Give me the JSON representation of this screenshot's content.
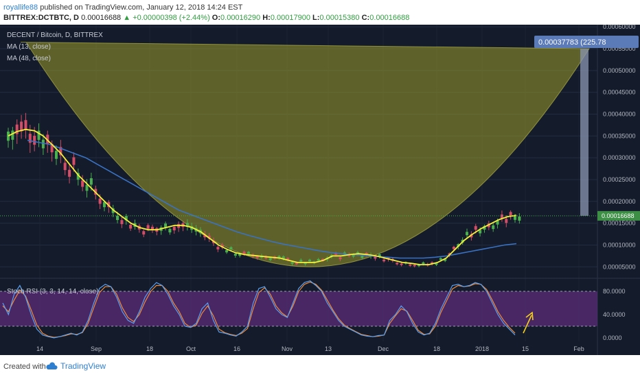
{
  "header": {
    "user": "royallife88",
    "published": " published on TradingView.com, January 12, 2018 14:24 EST",
    "symbol": "BITTREX:DCTBTC, D",
    "last": "0.00016688",
    "change": "▲ +0.00000398 (+2.44%)",
    "o_label": "O:",
    "o": "0.00016290",
    "h_label": "H:",
    "h": "0.00017900",
    "l_label": "L:",
    "l": "0.00015380",
    "c_label": "C:",
    "c": "0.00016688"
  },
  "legend": {
    "pair": "DECENT / Bitcoin, D, BITTREX",
    "ma13": "MA (13, close)",
    "ma48": "MA (48, close)",
    "stoch": "Stoch RSI (3, 3, 14, 14, close)"
  },
  "labels": {
    "price_tag": "0.00016688",
    "measure": "0.00037783 (225.78"
  },
  "colors": {
    "background": "#141b2b",
    "up": "#4caf50",
    "down": "#d24d65",
    "ma13": "#f5f039",
    "ma48": "#3a72c4",
    "cup": "#9a9a2a",
    "stoch_band": "#5a2c78",
    "k_line": "#5aa0f0",
    "d_line": "#f08a3c",
    "arrow": "#f5d020"
  },
  "footer": {
    "created": "Created with",
    "brand": "TradingView"
  },
  "chart_data": [
    {
      "type": "candlestick",
      "title": "DECENT / Bitcoin, D, BITTREX",
      "x_ticks": [
        "14",
        "Sep",
        "18",
        "Oct",
        "16",
        "Nov",
        "13",
        "Dec",
        "18",
        "2018",
        "15",
        "Feb"
      ],
      "y_ticks": [
        "0.00060000",
        "0.00055000",
        "0.00050000",
        "0.00045000",
        "0.00040000",
        "0.00035000",
        "0.00030000",
        "0.00025000",
        "0.00020000",
        "0.00015000",
        "0.00010000",
        "0.00005000"
      ],
      "ylim": [
        3e-05,
        0.000605
      ],
      "last_close": 0.00016688,
      "series": [
        {
          "name": "MA (13, close)",
          "values": [
            0.00035,
            0.00036,
            0.000365,
            0.000362,
            0.00035,
            0.00033,
            0.00031,
            0.000285,
            0.00026,
            0.00024,
            0.00022,
            0.0002,
            0.00018,
            0.000165,
            0.00015,
            0.00014,
            0.000135,
            0.000135,
            0.00014,
            0.000145,
            0.000145,
            0.00014,
            0.00013,
            0.000115,
            0.0001,
            9e-05,
            8.2e-05,
            7.8e-05,
            7.6e-05,
            7.4e-05,
            7.2e-05,
            7e-05,
            6.5e-05,
            6e-05,
            6e-05,
            6e-05,
            6.5e-05,
            7.5e-05,
            7.5e-05,
            7.8e-05,
            8e-05,
            7.8e-05,
            7.5e-05,
            7e-05,
            6.5e-05,
            6e-05,
            5.8e-05,
            5.5e-05,
            5.5e-05,
            6e-05,
            7e-05,
            9e-05,
            0.00011,
            0.000125,
            0.000138,
            0.000148,
            0.000158,
            0.000165,
            0.000168
          ]
        },
        {
          "name": "MA (48, close)",
          "values": [
            0.00034,
            0.000335,
            0.00033,
            0.00032,
            0.00031,
            0.0003,
            0.000285,
            0.00027,
            0.000255,
            0.00024,
            0.000225,
            0.00021,
            0.000195,
            0.00018,
            0.00017,
            0.00016,
            0.00015,
            0.00014,
            0.00013,
            0.000122,
            0.000115,
            0.000108,
            0.000102,
            9.7e-05,
            9.2e-05,
            8.7e-05,
            8.3e-05,
            8e-05,
            7.8e-05,
            7.6e-05,
            7.4e-05,
            7.2e-05,
            7e-05,
            7e-05,
            7e-05,
            7.2e-05,
            7.5e-05,
            8e-05,
            8.5e-05,
            9e-05,
            9.5e-05,
            0.0001,
            0.000103
          ]
        }
      ],
      "measure_high": 0.00055,
      "measure_low": 0.00016688,
      "measure_change": "0.00037783 (225.78"
    },
    {
      "type": "line",
      "title": "Stoch RSI (3, 3, 14, 14, close)",
      "y_ticks": [
        "80.0000",
        "40.0000",
        "0.0000"
      ],
      "ylim": [
        -6,
        100
      ],
      "band": [
        20,
        80
      ],
      "series": [
        {
          "name": "K",
          "values": [
            60,
            40,
            75,
            90,
            70,
            40,
            15,
            5,
            2,
            0,
            2,
            5,
            8,
            5,
            10,
            30,
            60,
            85,
            92,
            88,
            70,
            45,
            30,
            25,
            45,
            70,
            85,
            95,
            90,
            75,
            55,
            40,
            20,
            18,
            25,
            50,
            60,
            30,
            10,
            8,
            5,
            3,
            10,
            20,
            60,
            85,
            88,
            70,
            50,
            40,
            35,
            60,
            85,
            95,
            98,
            90,
            80,
            60,
            45,
            30,
            20,
            15,
            10,
            5,
            3,
            2,
            4,
            5,
            30,
            40,
            55,
            45,
            25,
            10,
            5,
            8,
            25,
            50,
            70,
            90,
            92,
            88,
            90,
            95,
            92,
            80,
            60,
            40,
            25,
            15,
            5
          ]
        },
        {
          "name": "D",
          "values": [
            55,
            45,
            65,
            82,
            72,
            48,
            22,
            8,
            3,
            1,
            2,
            4,
            7,
            6,
            9,
            25,
            52,
            78,
            88,
            88,
            75,
            52,
            35,
            28,
            40,
            62,
            80,
            90,
            90,
            80,
            60,
            45,
            25,
            18,
            22,
            42,
            55,
            38,
            15,
            9,
            6,
            4,
            8,
            16,
            50,
            78,
            86,
            75,
            55,
            43,
            36,
            55,
            80,
            92,
            96,
            92,
            82,
            65,
            48,
            33,
            22,
            16,
            11,
            6,
            4,
            2,
            3,
            5,
            25,
            38,
            50,
            46,
            30,
            13,
            6,
            7,
            20,
            44,
            64,
            84,
            90,
            88,
            89,
            93,
            92,
            83,
            65,
            45,
            30,
            18,
            8
          ]
        }
      ]
    }
  ]
}
